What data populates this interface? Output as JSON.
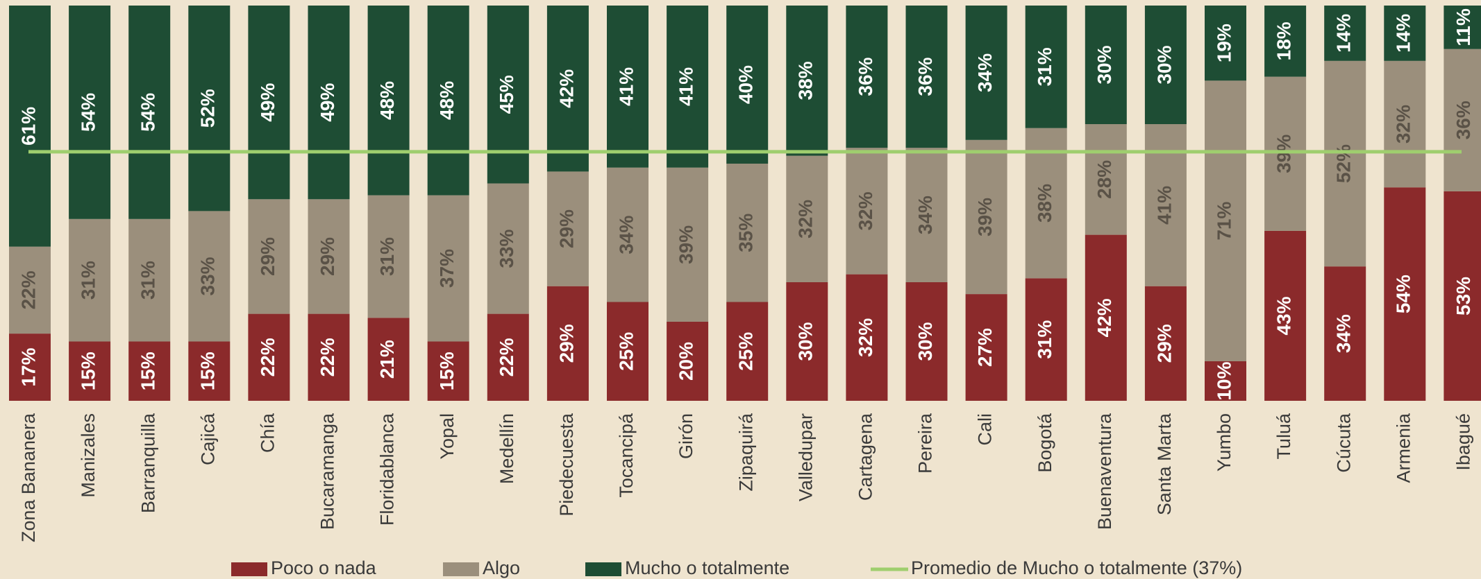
{
  "chart_data": {
    "type": "stacked_bar",
    "categories": [
      "Zona Bananera",
      "Manizales",
      "Barranquilla",
      "Cajicá",
      "Chía",
      "Bucaramanga",
      "Floridablanca",
      "Yopal",
      "Medellín",
      "Piedecuesta",
      "Tocancipá",
      "Girón",
      "Zipaquirá",
      "Valledupar",
      "Cartagena",
      "Pereira",
      "Cali",
      "Bogotá",
      "Buenaventura",
      "Santa Marta",
      "Yumbo",
      "Tuluá",
      "Cúcuta",
      "Armenia",
      "Ibagué"
    ],
    "series": [
      {
        "name": "Poco o nada",
        "color": "#8b2a2b",
        "label_color": "#ffffff",
        "values": [
          17,
          15,
          15,
          15,
          22,
          22,
          21,
          15,
          22,
          29,
          25,
          20,
          25,
          30,
          32,
          30,
          27,
          31,
          42,
          29,
          10,
          43,
          34,
          54,
          53
        ],
        "value_labels": [
          "17%",
          "15%",
          "15%",
          "15%",
          "22%",
          "22%",
          "21%",
          "15%",
          "22%",
          "29%",
          "25%",
          "20%",
          "25%",
          "30%",
          "32%",
          "30%",
          "27%",
          "31%",
          "42%",
          "29%",
          "10%",
          "43%",
          "34%",
          "54%",
          "53%"
        ]
      },
      {
        "name": "Algo",
        "color": "#9b8f7c",
        "label_color": "#5a5247",
        "values": [
          22,
          31,
          31,
          33,
          29,
          29,
          31,
          37,
          33,
          29,
          34,
          39,
          35,
          32,
          32,
          34,
          39,
          38,
          28,
          41,
          71,
          39,
          52,
          32,
          36
        ],
        "value_labels": [
          "22%",
          "31%",
          "31%",
          "33%",
          "29%",
          "29%",
          "31%",
          "37%",
          "33%",
          "29%",
          "34%",
          "39%",
          "35%",
          "32%",
          "32%",
          "34%",
          "39%",
          "38%",
          "28%",
          "41%",
          "71%",
          "39%",
          "52%",
          "32%",
          "36%"
        ]
      },
      {
        "name": "Mucho o totalmente",
        "color": "#1e4d34",
        "label_color": "#ffffff",
        "values": [
          61,
          54,
          54,
          52,
          49,
          49,
          48,
          48,
          45,
          42,
          41,
          41,
          40,
          38,
          36,
          36,
          34,
          31,
          30,
          30,
          19,
          18,
          14,
          14,
          11
        ],
        "value_labels": [
          "61%",
          "54%",
          "54%",
          "52%",
          "49%",
          "49%",
          "48%",
          "48%",
          "45%",
          "42%",
          "41%",
          "41%",
          "40%",
          "38%",
          "36%",
          "36%",
          "34%",
          "31%",
          "30%",
          "30%",
          "19%",
          "18%",
          "14%",
          "14%",
          "11%"
        ]
      }
    ],
    "average": {
      "name": "Promedio de Mucho o totalmente (37%)",
      "value": 37,
      "color": "#9fce6e"
    },
    "ylim": [
      0,
      100
    ]
  }
}
